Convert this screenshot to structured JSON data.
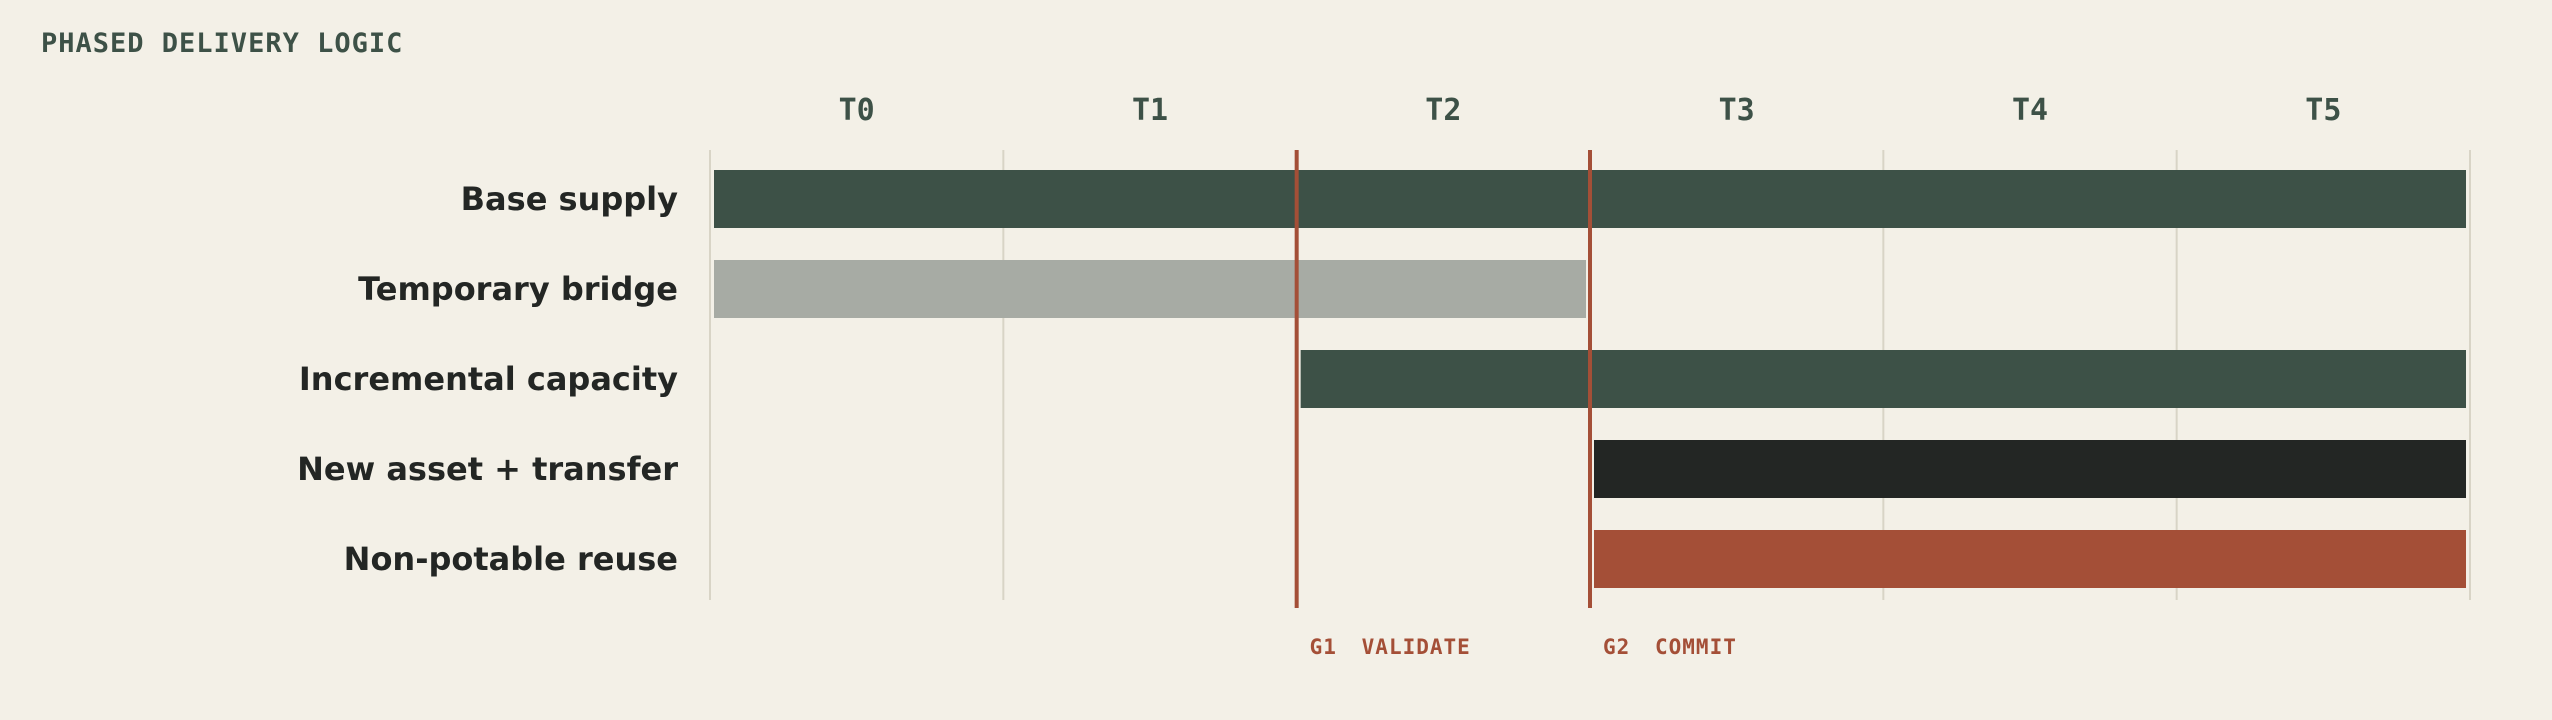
{
  "title": "PHASED DELIVERY LOGIC",
  "periods": [
    "T0",
    "T1",
    "T2",
    "T3",
    "T4",
    "T5"
  ],
  "rows": [
    {
      "label": "Base supply",
      "start": 0,
      "end": 6,
      "color": "#3d5147"
    },
    {
      "label": "Temporary bridge",
      "start": 0,
      "end": 3,
      "color": "#a7aba4"
    },
    {
      "label": "Incremental capacity",
      "start": 2,
      "end": 6,
      "color": "#3d5147"
    },
    {
      "label": "New asset + transfer",
      "start": 3,
      "end": 6,
      "color": "#232624"
    },
    {
      "label": "Non-potable reuse",
      "start": 3,
      "end": 6,
      "color": "#a44f37"
    }
  ],
  "gates": [
    {
      "id": "G1",
      "label": "VALIDATE",
      "at": 2
    },
    {
      "id": "G2",
      "label": "COMMIT",
      "at": 3
    }
  ],
  "colors": {
    "background": "#f3f0e7",
    "gridline": "#d8d4c6",
    "gate": "#a44f37",
    "text": "#232624",
    "title": "#3d5147"
  }
}
